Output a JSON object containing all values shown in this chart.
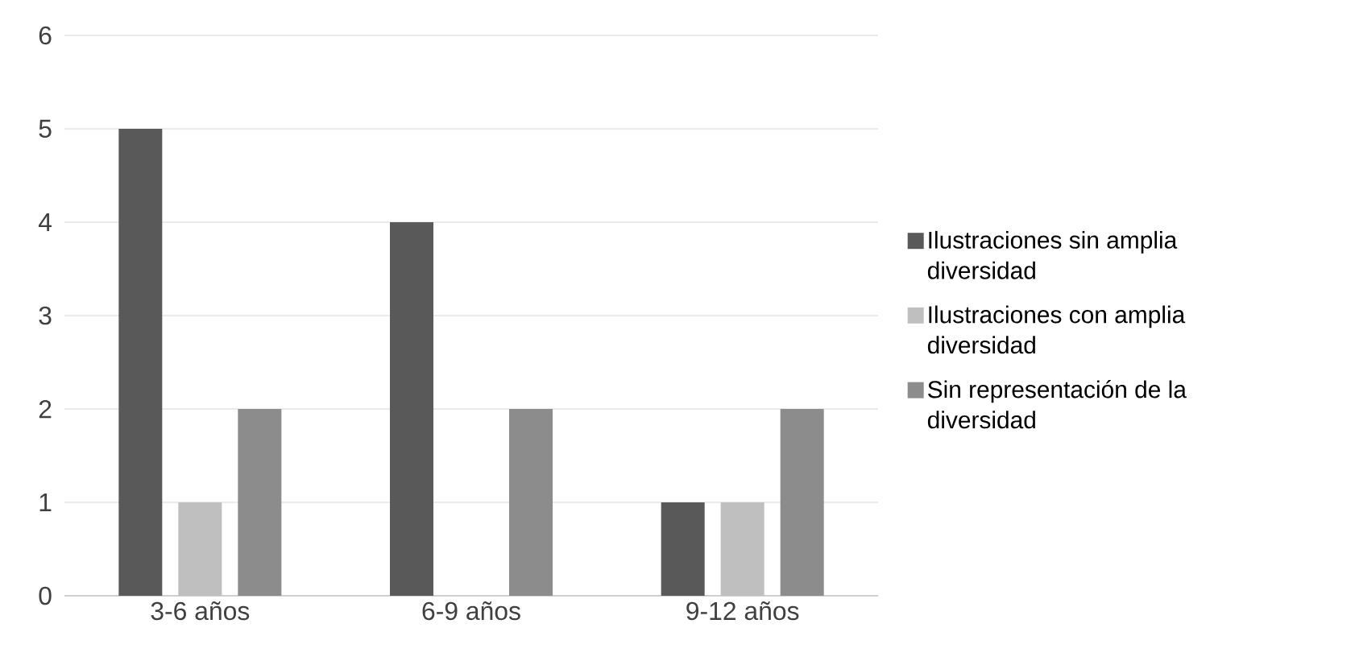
{
  "chart_data": {
    "type": "bar",
    "categories": [
      "3-6 años",
      "6-9 años",
      "9-12 años"
    ],
    "series": [
      {
        "name": "Ilustraciones sin amplia diversidad",
        "color": "#595959",
        "values": [
          5,
          4,
          1
        ]
      },
      {
        "name": "Ilustraciones con amplia diversidad",
        "color": "#bfbfbf",
        "values": [
          1,
          0,
          1
        ]
      },
      {
        "name": "Sin representación de la diversidad",
        "color": "#8c8c8c",
        "values": [
          2,
          2,
          2
        ]
      }
    ],
    "ylim": [
      0,
      6
    ],
    "yticks": [
      0,
      1,
      2,
      3,
      4,
      5,
      6
    ],
    "grid": "y",
    "legend": "right"
  }
}
